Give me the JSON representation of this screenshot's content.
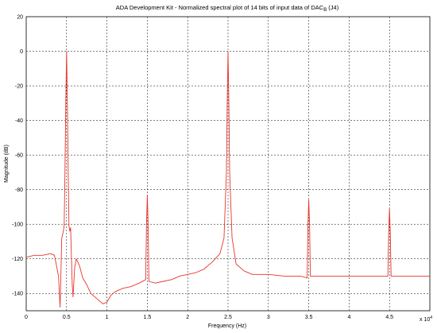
{
  "chart_data": {
    "type": "line",
    "title": "ADA Development Kit - Normalized spectral plot of 14 bits of input data of DAC",
    "title_sub": "B",
    "title_suffix": " (J4)",
    "xlabel": "Frequency (Hz)",
    "ylabel": "Magnitude (dB)",
    "x_exponent_label": "x 10",
    "x_exponent_power": "4",
    "xlim": [
      0,
      5
    ],
    "ylim": [
      -150,
      20
    ],
    "x_ticks": [
      "0",
      "0.5",
      "1",
      "1.5",
      "2",
      "2.5",
      "3",
      "3.5",
      "4",
      "4.5"
    ],
    "x_tick_values": [
      0,
      0.5,
      1,
      1.5,
      2,
      2.5,
      3,
      3.5,
      4,
      4.5
    ],
    "y_ticks": [
      "20",
      "0",
      "-20",
      "-40",
      "-60",
      "-80",
      "-100",
      "-120",
      "-140"
    ],
    "y_tick_values": [
      20,
      0,
      -20,
      -40,
      -60,
      -80,
      -100,
      -120,
      -140
    ],
    "grid": true,
    "line_color": "#e8342c",
    "series": [
      {
        "values_x": [
          0,
          0.1,
          0.2,
          0.3,
          0.35,
          0.4,
          0.42,
          0.44,
          0.46,
          0.47,
          0.48,
          0.49,
          0.5,
          0.51,
          0.52,
          0.53,
          0.54,
          0.55,
          0.57,
          0.58,
          0.6,
          0.62,
          0.66,
          0.7,
          0.75,
          0.8,
          0.85,
          0.9,
          0.95,
          1.0,
          1.05,
          1.1,
          1.2,
          1.3,
          1.4,
          1.48,
          1.49,
          1.5,
          1.51,
          1.52,
          1.6,
          1.7,
          1.8,
          1.9,
          2.0,
          2.1,
          2.2,
          2.3,
          2.4,
          2.45,
          2.48,
          2.49,
          2.5,
          2.51,
          2.52,
          2.55,
          2.6,
          2.7,
          2.8,
          2.9,
          3.0,
          3.2,
          3.4,
          3.48,
          3.49,
          3.5,
          3.51,
          3.52,
          3.7,
          3.9,
          4.1,
          4.3,
          4.48,
          4.49,
          4.5,
          4.51,
          4.52,
          4.7,
          4.9,
          5.0
        ],
        "values_y": [
          -119,
          -118,
          -118,
          -117,
          -118,
          -130,
          -148,
          -108,
          -104,
          -101,
          -70,
          -30,
          0,
          -30,
          -70,
          -101,
          -104,
          -102,
          -135,
          -142,
          -125,
          -120,
          -124,
          -131,
          -135,
          -140,
          -142,
          -144,
          -146,
          -145,
          -141,
          -139,
          -137,
          -136,
          -134,
          -132,
          -100,
          -83,
          -100,
          -133,
          -134,
          -133,
          -132,
          -130,
          -129,
          -128,
          -126,
          -122,
          -117,
          -108,
          -70,
          -30,
          0,
          -30,
          -70,
          -108,
          -123,
          -127,
          -129,
          -129,
          -129,
          -130,
          -130,
          -131,
          -100,
          -86,
          -100,
          -130,
          -130,
          -130,
          -130,
          -130,
          -130,
          -105,
          -91,
          -105,
          -130,
          -130,
          -130,
          -130
        ]
      }
    ]
  }
}
